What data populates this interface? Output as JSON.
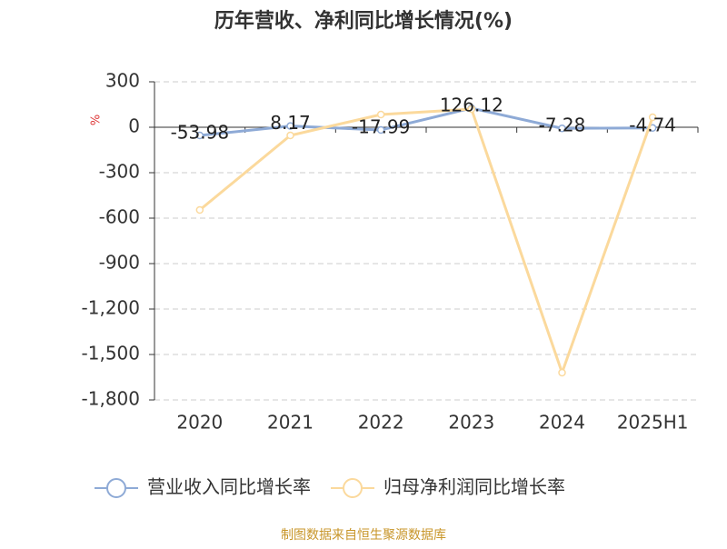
{
  "chart_data": {
    "type": "line",
    "title": "历年营收、净利同比增长情况(%)",
    "y_unit": "%",
    "categories": [
      "2020",
      "2021",
      "2022",
      "2023",
      "2024",
      "2025H1"
    ],
    "series": [
      {
        "name": "营业收入同比增长率",
        "color": "#8eaad6",
        "values": [
          -53.98,
          8.17,
          -17.99,
          126.12,
          -7.28,
          -4.74
        ],
        "show_labels": true
      },
      {
        "name": "归母净利润同比增长率",
        "color": "#fbd99c",
        "values": [
          -546,
          -54,
          84,
          120,
          -1620,
          66
        ],
        "show_labels": false
      }
    ],
    "ylim": [
      -1800,
      300
    ],
    "yticks": [
      {
        "value": -1800,
        "label": "-1,800"
      },
      {
        "value": -1500,
        "label": "-1,500"
      },
      {
        "value": -1200,
        "label": "-1,200"
      },
      -900,
      -600,
      -300,
      0,
      300
    ],
    "grid": true,
    "legend": "bottom",
    "source": "制图数据来自恒生聚源数据库"
  }
}
